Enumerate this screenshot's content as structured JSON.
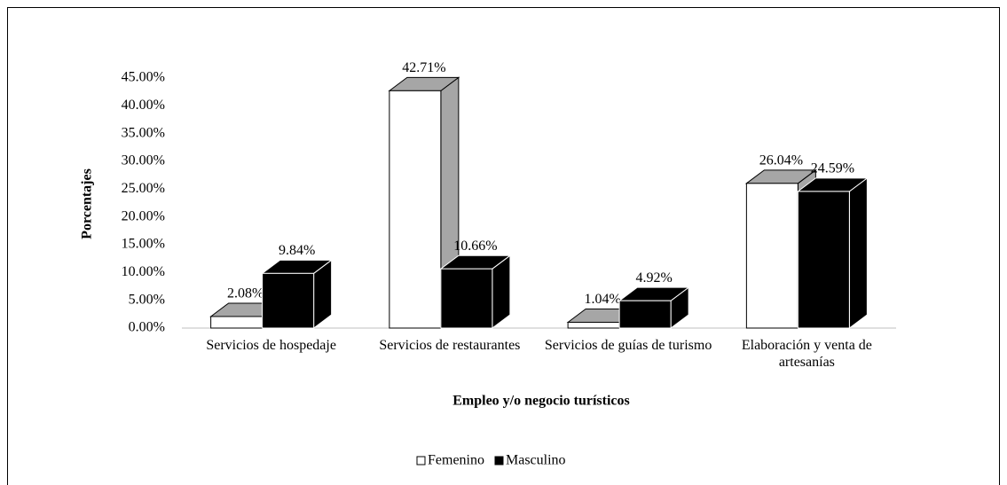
{
  "chart_data": {
    "type": "bar3d",
    "xlabel": "Empleo y/o negocio turísticos",
    "ylabel": "Porcentajes",
    "categories": [
      "Servicios de hospedaje",
      "Servicios de restaurantes",
      "Servicios de guías de turismo",
      "Elaboración y venta de artesanías"
    ],
    "series": [
      {
        "name": "Femenino",
        "color": "#ffffff",
        "values": [
          2.08,
          42.71,
          1.04,
          26.04
        ],
        "value_labels": [
          "2.08%",
          "42.71%",
          "1.04%",
          "26.04%"
        ]
      },
      {
        "name": "Masculino",
        "color": "#000000",
        "values": [
          9.84,
          10.66,
          4.92,
          24.59
        ],
        "value_labels": [
          "9.84%",
          "10.66%",
          "4.92%",
          "24.59%"
        ]
      }
    ],
    "ylim": [
      0,
      45
    ],
    "yticks": [
      {
        "value": 0,
        "label": "0.00%"
      },
      {
        "value": 5,
        "label": "5.00%"
      },
      {
        "value": 10,
        "label": "10.00%"
      },
      {
        "value": 15,
        "label": "15.00%"
      },
      {
        "value": 20,
        "label": "20.00%"
      },
      {
        "value": 25,
        "label": "25.00%"
      },
      {
        "value": 30,
        "label": "30.00%"
      },
      {
        "value": 35,
        "label": "35.00%"
      },
      {
        "value": 40,
        "label": "40.00%"
      },
      {
        "value": 45,
        "label": "45.00%"
      }
    ],
    "legend": "bottom"
  }
}
